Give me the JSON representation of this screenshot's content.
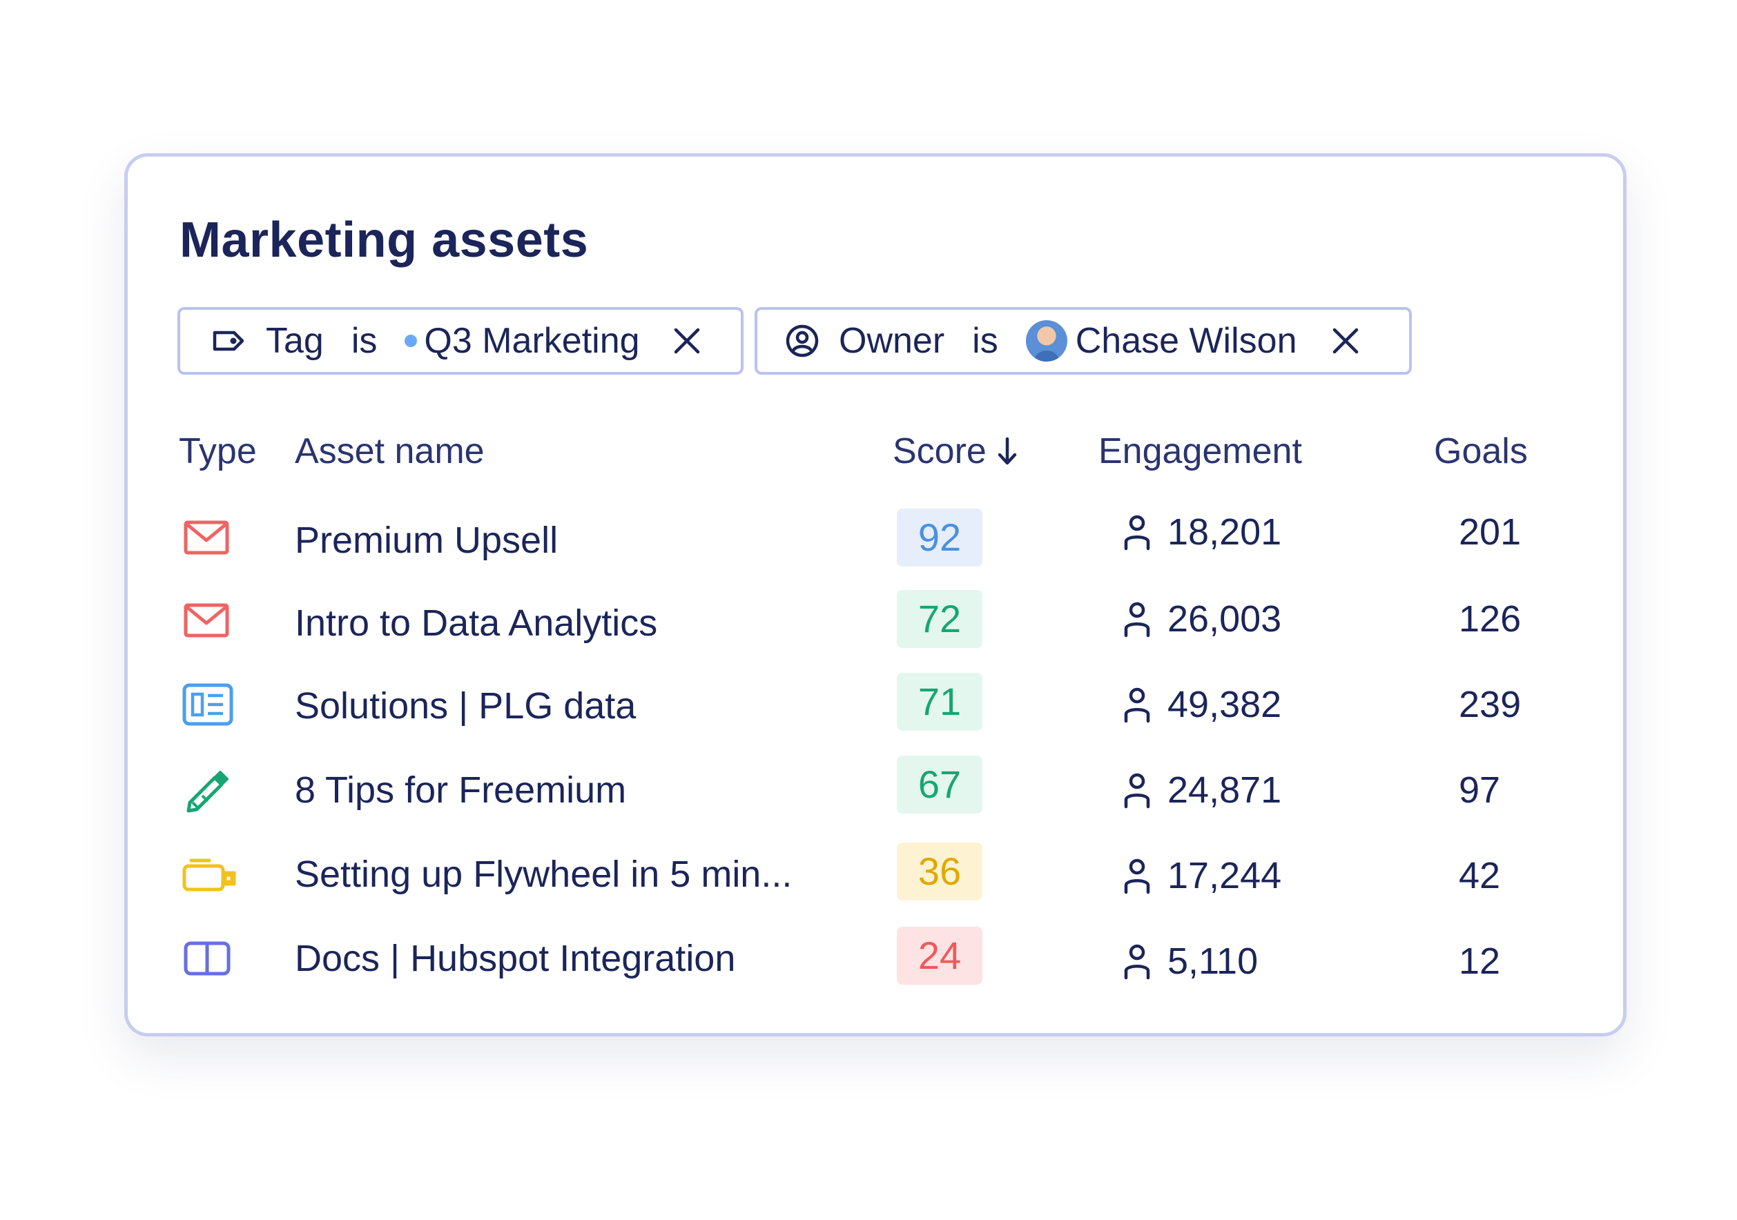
{
  "card": {
    "title": "Marketing assets"
  },
  "filters": [
    {
      "field": "Tag",
      "operator": "is",
      "value": "Q3 Marketing",
      "icon": "tag-icon"
    },
    {
      "field": "Owner",
      "operator": "is",
      "value": "Chase Wilson",
      "icon": "user-circle-icon"
    }
  ],
  "columns": {
    "type": "Type",
    "name": "Asset name",
    "score": "Score",
    "engagement": "Engagement",
    "goals": "Goals"
  },
  "rows": [
    {
      "type": "email-icon",
      "name": "Premium Upsell",
      "score": "92",
      "engagement": "18,201",
      "goals": "201",
      "score_color": "#4a90e2",
      "score_bg": "#e6eefb"
    },
    {
      "type": "email-icon",
      "name": "Intro to Data Analytics",
      "score": "72",
      "engagement": "26,003",
      "goals": "126",
      "score_color": "#17a673",
      "score_bg": "#e3f7ee"
    },
    {
      "type": "webpage-icon",
      "name": "Solutions | PLG data",
      "score": "71",
      "engagement": "49,382",
      "goals": "239",
      "score_color": "#17a673",
      "score_bg": "#e3f7ee"
    },
    {
      "type": "pencil-icon",
      "name": "8 Tips for Freemium",
      "score": "67",
      "engagement": "24,871",
      "goals": "97",
      "score_color": "#17a673",
      "score_bg": "#e3f7ee"
    },
    {
      "type": "video-camera-icon",
      "name": "Setting up Flywheel in 5 min...",
      "score": "36",
      "engagement": "17,244",
      "goals": "42",
      "score_color": "#e0a800",
      "score_bg": "#fdf3d3"
    },
    {
      "type": "book-icon",
      "name": "Docs | Hubspot Integration",
      "score": "24",
      "engagement": "5,110",
      "goals": "12",
      "score_color": "#ee5a5a",
      "score_bg": "#fde3e3"
    }
  ]
}
